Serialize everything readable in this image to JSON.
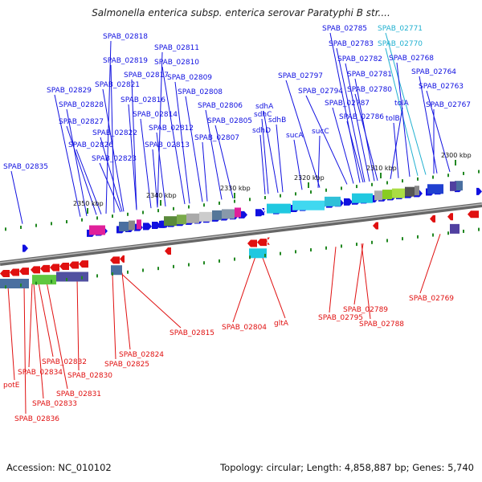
{
  "title": "Salmonella enterica subsp. enterica serovar Paratyphi B str....",
  "footer": {
    "accession": "Accession: NC_010102",
    "stats": "Topology: circular; Length: 4,858,887 bp; Genes: 5,740"
  },
  "colors": {
    "forward": "#1010e0",
    "reverse": "#e01010",
    "highlight": "#20b0d0",
    "backbone": "#888888",
    "tick": "#228822"
  },
  "scale_ticks": [
    "2350 kbp",
    "2340 kbp",
    "2330 kbp",
    "2320 kbp",
    "2310 kbp",
    "2300 kbp"
  ],
  "top_labels": [
    {
      "text": "SPAB_02818",
      "color": "fwd"
    },
    {
      "text": "SPAB_02811",
      "color": "fwd"
    },
    {
      "text": "SPAB_02819",
      "color": "fwd"
    },
    {
      "text": "SPAB_02810",
      "color": "fwd"
    },
    {
      "text": "SPAB_02817",
      "color": "fwd"
    },
    {
      "text": "SPAB_02809",
      "color": "fwd"
    },
    {
      "text": "SPAB_02829",
      "color": "fwd"
    },
    {
      "text": "SPAB_02821",
      "color": "fwd"
    },
    {
      "text": "SPAB_02808",
      "color": "fwd"
    },
    {
      "text": "SPAB_02816",
      "color": "fwd"
    },
    {
      "text": "SPAB_02828",
      "color": "fwd"
    },
    {
      "text": "SPAB_02806",
      "color": "fwd"
    },
    {
      "text": "SPAB_02814",
      "color": "fwd"
    },
    {
      "text": "SPAB_02827",
      "color": "fwd"
    },
    {
      "text": "SPAB_02805",
      "color": "fwd"
    },
    {
      "text": "SPAB_02812",
      "color": "fwd"
    },
    {
      "text": "SPAB_02822",
      "color": "fwd"
    },
    {
      "text": "SPAB_02807",
      "color": "fwd"
    },
    {
      "text": "SPAB_02826",
      "color": "fwd"
    },
    {
      "text": "SPAB_02813",
      "color": "fwd"
    },
    {
      "text": "SPAB_02823",
      "color": "fwd"
    },
    {
      "text": "SPAB_02835",
      "color": "fwd"
    },
    {
      "text": "sdhC",
      "color": "fwd"
    },
    {
      "text": "sdhA",
      "color": "fwd"
    },
    {
      "text": "sdhB",
      "color": "fwd"
    },
    {
      "text": "sdhD",
      "color": "fwd"
    },
    {
      "text": "sucA",
      "color": "fwd"
    },
    {
      "text": "sucC",
      "color": "fwd"
    },
    {
      "text": "SPAB_02797",
      "color": "fwd"
    },
    {
      "text": "SPAB_02794",
      "color": "fwd"
    },
    {
      "text": "SPAB_02785",
      "color": "fwd"
    },
    {
      "text": "SPAB_02771",
      "color": "hl"
    },
    {
      "text": "SPAB_02783",
      "color": "fwd"
    },
    {
      "text": "SPAB_02770",
      "color": "hl"
    },
    {
      "text": "SPAB_02782",
      "color": "fwd"
    },
    {
      "text": "SPAB_02768",
      "color": "fwd"
    },
    {
      "text": "SPAB_02781",
      "color": "fwd"
    },
    {
      "text": "SPAB_02764",
      "color": "fwd"
    },
    {
      "text": "SPAB_02780",
      "color": "fwd"
    },
    {
      "text": "SPAB_02763",
      "color": "fwd"
    },
    {
      "text": "SPAB_02787",
      "color": "fwd"
    },
    {
      "text": "tolA",
      "color": "fwd"
    },
    {
      "text": "SPAB_02767",
      "color": "fwd"
    },
    {
      "text": "SPAB_02786",
      "color": "fwd"
    },
    {
      "text": "tolB",
      "color": "fwd"
    }
  ],
  "bottom_labels": [
    "SPAB_02815",
    "SPAB_02804",
    "gltA",
    "SPAB_02795",
    "SPAB_02789",
    "SPAB_02788",
    "SPAB_02769",
    "SPAB_02824",
    "SPAB_02825",
    "SPAB_02832",
    "SPAB_02834",
    "SPAB_02830",
    "SPAB_02831",
    "SPAB_02833",
    "potE",
    "SPAB_02836"
  ]
}
